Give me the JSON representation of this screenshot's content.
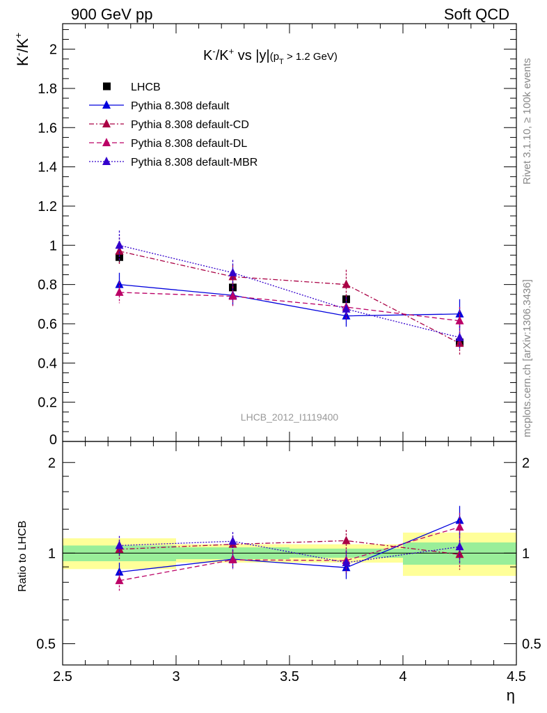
{
  "header": {
    "left": "900 GeV pp",
    "right": "Soft QCD"
  },
  "side_text": {
    "rivet": "Rivet 3.1.10, ≥ 100k events",
    "mcplots": "mcplots.cern.ch [arXiv:1306.3436]"
  },
  "chart_data": [
    {
      "type": "line",
      "panel": "main",
      "title_parts": {
        "base": "K",
        "sup1": "-",
        "mid": "/K",
        "sup2": "+",
        "tail": " vs |y|",
        "paren_open": "(p",
        "sub": "T",
        "paren_rest": " > 1.2 GeV)"
      },
      "ylabel_parts": {
        "base": "K",
        "sup1": "-",
        "mid": "/K",
        "sup2": "+"
      },
      "xlabel": "η",
      "watermark": "LHCB_2012_I1119400",
      "xlim": [
        2.5,
        4.5
      ],
      "ylim": [
        0,
        2.13
      ],
      "xticks": [
        "2.5",
        "3",
        "3.5",
        "4",
        "4.5"
      ],
      "yticks": [
        "0",
        "0.2",
        "0.4",
        "0.6",
        "0.8",
        "1",
        "1.2",
        "1.4",
        "1.6",
        "1.8",
        "2"
      ],
      "legend_position": "top-left",
      "grid": false,
      "x": [
        2.75,
        3.25,
        3.75,
        4.25
      ],
      "series": [
        {
          "name": "LHCB",
          "marker": "square",
          "color": "#000000",
          "line": "none",
          "values": [
            0.94,
            0.785,
            0.725,
            0.505
          ],
          "errors": [
            0.03,
            0.03,
            0.025,
            0.02
          ]
        },
        {
          "name": "Pythia 8.308 default",
          "marker": "triangle",
          "color": "#0000dd",
          "line": "solid",
          "values": [
            0.8,
            0.745,
            0.64,
            0.65
          ],
          "errors": [
            0.06,
            0.05,
            0.055,
            0.075
          ]
        },
        {
          "name": "Pythia 8.308 default-CD",
          "marker": "triangle",
          "color": "#aa0044",
          "line": "dashdot",
          "values": [
            0.97,
            0.84,
            0.8,
            0.5
          ],
          "errors": [
            0.07,
            0.06,
            0.075,
            0.06
          ]
        },
        {
          "name": "Pythia 8.308 default-DL",
          "marker": "triangle",
          "color": "#bb0066",
          "line": "dashed",
          "values": [
            0.76,
            0.74,
            0.685,
            0.615
          ],
          "errors": [
            0.055,
            0.05,
            0.06,
            0.07
          ]
        },
        {
          "name": "Pythia 8.308 default-MBR",
          "marker": "triangle",
          "color": "#3300cc",
          "line": "dotted",
          "values": [
            1.0,
            0.86,
            0.675,
            0.53
          ],
          "errors": [
            0.075,
            0.065,
            0.06,
            0.06
          ]
        }
      ]
    },
    {
      "type": "line",
      "panel": "ratio",
      "ylabel": "Ratio to LHCB",
      "xlabel": "η",
      "xlim": [
        2.5,
        4.5
      ],
      "ylim": [
        0.425,
        2.35
      ],
      "yscale": "log",
      "yticks": [
        "0.5",
        "1",
        "2"
      ],
      "bands": [
        {
          "x": [
            2.5,
            3.0
          ],
          "inner": [
            0.94,
            1.06
          ],
          "outer": [
            0.885,
            1.12
          ]
        },
        {
          "x": [
            3.0,
            3.5
          ],
          "inner": [
            0.955,
            1.045
          ],
          "outer": [
            0.93,
            1.07
          ]
        },
        {
          "x": [
            3.5,
            4.0
          ],
          "inner": [
            0.965,
            1.035
          ],
          "outer": [
            0.93,
            1.07
          ]
        },
        {
          "x": [
            4.0,
            4.5
          ],
          "inner": [
            0.915,
            1.085
          ],
          "outer": [
            0.84,
            1.17
          ]
        }
      ],
      "x": [
        2.75,
        3.25,
        3.75,
        4.25
      ],
      "series": [
        {
          "name": "Pythia 8.308 default",
          "values": [
            0.865,
            0.955,
            0.895,
            1.285
          ],
          "errors": [
            0.065,
            0.065,
            0.075,
            0.15
          ]
        },
        {
          "name": "Pythia 8.308 default-CD",
          "values": [
            1.03,
            1.07,
            1.1,
            0.99
          ],
          "errors": [
            0.075,
            0.075,
            0.095,
            0.11
          ]
        },
        {
          "name": "Pythia 8.308 default-DL",
          "values": [
            0.81,
            0.95,
            0.945,
            1.22
          ],
          "errors": [
            0.06,
            0.065,
            0.08,
            0.14
          ]
        },
        {
          "name": "Pythia 8.308 default-MBR",
          "values": [
            1.06,
            1.095,
            0.93,
            1.05
          ],
          "errors": [
            0.08,
            0.08,
            0.085,
            0.12
          ]
        }
      ]
    }
  ]
}
